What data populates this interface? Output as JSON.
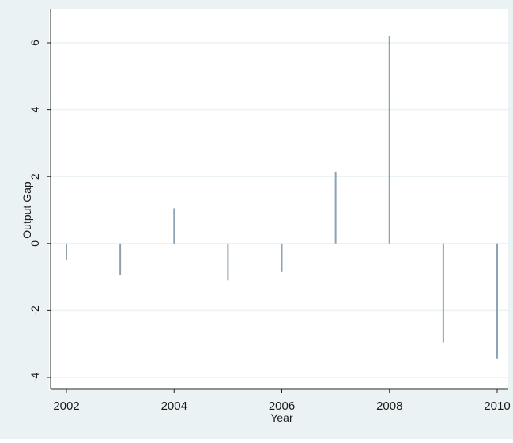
{
  "chart_data": {
    "type": "spike",
    "xlabel": "Year",
    "ylabel": "Output Gap",
    "x": [
      2002,
      2003,
      2004,
      2005,
      2006,
      2007,
      2008,
      2009,
      2010
    ],
    "values": [
      -0.5,
      -0.95,
      1.05,
      -1.1,
      -0.85,
      2.15,
      6.2,
      -2.95,
      -3.45
    ],
    "xlim": [
      2002,
      2010
    ],
    "ylim": [
      -4,
      6
    ],
    "xticks": [
      2002,
      2004,
      2006,
      2008,
      2010
    ],
    "yticks": [
      -4,
      -2,
      0,
      2,
      4,
      6
    ],
    "xtick_labels": [
      "2002",
      "2004",
      "2006",
      "2008",
      "2010"
    ],
    "ytick_labels": [
      "-4",
      "-2",
      "0",
      "2",
      "4",
      "6"
    ],
    "grid": true,
    "legend": "none",
    "colors": {
      "outer_background": "#eaf2f3",
      "plot_background": "#ffffff",
      "grid": "#eaf2f3",
      "series": "#8ca2b5",
      "axis": "#222222"
    }
  }
}
